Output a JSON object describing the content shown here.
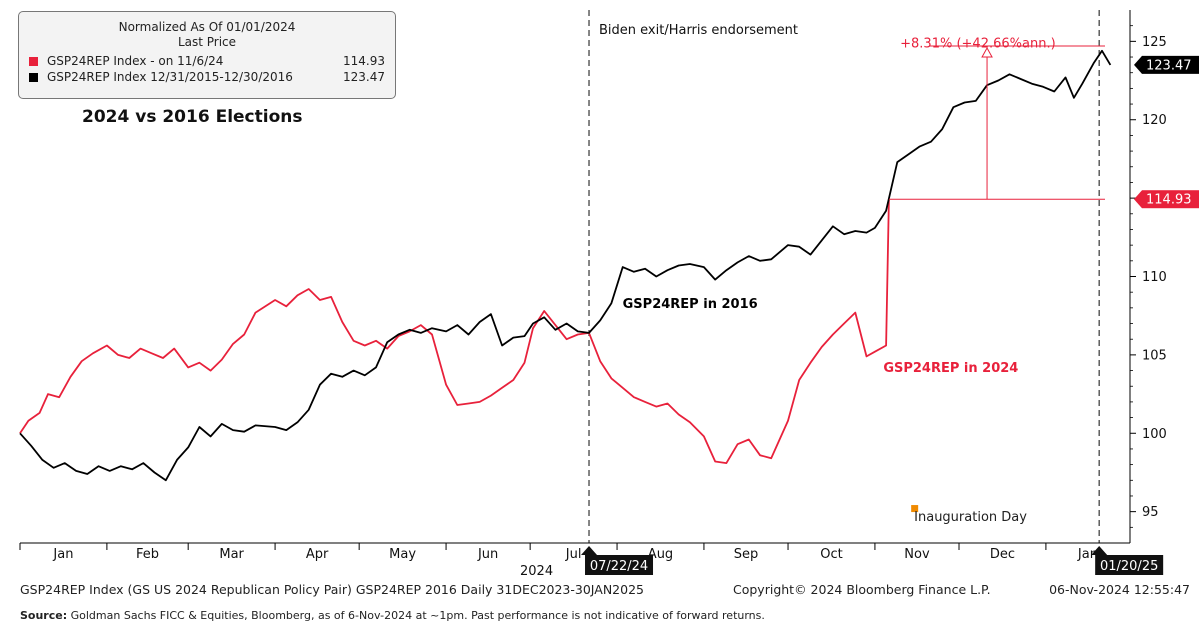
{
  "legend": {
    "header1": "Normalized As Of 01/01/2024",
    "header2": "Last Price",
    "rows": [
      {
        "label": "GSP24REP Index -  on 11/6/24",
        "value": "114.93",
        "color": "#e8213b"
      },
      {
        "label": "GSP24REP Index 12/31/2015-12/30/2016",
        "value": "123.47",
        "color": "#000000"
      }
    ]
  },
  "chart_title": "2024 vs 2016 Elections",
  "chart_data": {
    "type": "line",
    "title": "2024 vs 2016 Elections",
    "ylim": [
      93,
      127
    ],
    "yticks": [
      95,
      100,
      105,
      110,
      115,
      120,
      125
    ],
    "ytick_labels": [
      "95",
      "100",
      "105",
      "110",
      "115",
      "120",
      "125"
    ],
    "xaxis": {
      "domain": [
        "2024-01-01",
        "2025-01-31"
      ],
      "month_ticks": [
        "2024-01-01",
        "2024-02-01",
        "2024-03-01",
        "2024-04-01",
        "2024-05-01",
        "2024-06-01",
        "2024-07-01",
        "2024-08-01",
        "2024-09-01",
        "2024-10-01",
        "2024-11-01",
        "2024-12-01",
        "2025-01-01"
      ],
      "month_labels": [
        "Jan",
        "Feb",
        "Mar",
        "Apr",
        "May",
        "Jun",
        "Jul",
        "Aug",
        "Sep",
        "Oct",
        "Nov",
        "Dec",
        "Jan"
      ],
      "year_label": "2024"
    },
    "series": [
      {
        "name": "GSP24REP in 2024",
        "color": "#e8213b",
        "last_value_label": "114.93",
        "points": [
          [
            "2024-01-01",
            100.0
          ],
          [
            "2024-01-04",
            100.8
          ],
          [
            "2024-01-08",
            101.3
          ],
          [
            "2024-01-11",
            102.5
          ],
          [
            "2024-01-15",
            102.3
          ],
          [
            "2024-01-19",
            103.6
          ],
          [
            "2024-01-23",
            104.6
          ],
          [
            "2024-01-27",
            105.1
          ],
          [
            "2024-02-01",
            105.6
          ],
          [
            "2024-02-05",
            105.0
          ],
          [
            "2024-02-09",
            104.8
          ],
          [
            "2024-02-13",
            105.4
          ],
          [
            "2024-02-17",
            105.1
          ],
          [
            "2024-02-21",
            104.8
          ],
          [
            "2024-02-25",
            105.4
          ],
          [
            "2024-03-01",
            104.2
          ],
          [
            "2024-03-05",
            104.5
          ],
          [
            "2024-03-09",
            104.0
          ],
          [
            "2024-03-13",
            104.7
          ],
          [
            "2024-03-17",
            105.7
          ],
          [
            "2024-03-21",
            106.3
          ],
          [
            "2024-03-25",
            107.7
          ],
          [
            "2024-04-01",
            108.5
          ],
          [
            "2024-04-05",
            108.1
          ],
          [
            "2024-04-09",
            108.8
          ],
          [
            "2024-04-13",
            109.2
          ],
          [
            "2024-04-17",
            108.5
          ],
          [
            "2024-04-21",
            108.7
          ],
          [
            "2024-04-25",
            107.1
          ],
          [
            "2024-04-29",
            105.9
          ],
          [
            "2024-05-03",
            105.6
          ],
          [
            "2024-05-07",
            105.9
          ],
          [
            "2024-05-11",
            105.4
          ],
          [
            "2024-05-15",
            106.2
          ],
          [
            "2024-05-19",
            106.5
          ],
          [
            "2024-05-23",
            106.9
          ],
          [
            "2024-05-27",
            106.3
          ],
          [
            "2024-06-01",
            103.1
          ],
          [
            "2024-06-05",
            101.8
          ],
          [
            "2024-06-09",
            101.9
          ],
          [
            "2024-06-13",
            102.0
          ],
          [
            "2024-06-17",
            102.4
          ],
          [
            "2024-06-21",
            102.9
          ],
          [
            "2024-06-25",
            103.4
          ],
          [
            "2024-06-29",
            104.5
          ],
          [
            "2024-07-02",
            106.7
          ],
          [
            "2024-07-06",
            107.8
          ],
          [
            "2024-07-10",
            106.9
          ],
          [
            "2024-07-14",
            106.0
          ],
          [
            "2024-07-18",
            106.3
          ],
          [
            "2024-07-22",
            106.4
          ],
          [
            "2024-07-26",
            104.6
          ],
          [
            "2024-07-30",
            103.5
          ],
          [
            "2024-08-03",
            102.9
          ],
          [
            "2024-08-07",
            102.3
          ],
          [
            "2024-08-11",
            102.0
          ],
          [
            "2024-08-15",
            101.7
          ],
          [
            "2024-08-19",
            101.9
          ],
          [
            "2024-08-23",
            101.2
          ],
          [
            "2024-08-27",
            100.7
          ],
          [
            "2024-09-01",
            99.8
          ],
          [
            "2024-09-05",
            98.2
          ],
          [
            "2024-09-09",
            98.1
          ],
          [
            "2024-09-13",
            99.3
          ],
          [
            "2024-09-17",
            99.6
          ],
          [
            "2024-09-21",
            98.6
          ],
          [
            "2024-09-25",
            98.4
          ],
          [
            "2024-10-01",
            100.8
          ],
          [
            "2024-10-05",
            103.4
          ],
          [
            "2024-10-09",
            104.5
          ],
          [
            "2024-10-13",
            105.5
          ],
          [
            "2024-10-17",
            106.3
          ],
          [
            "2024-10-21",
            107.0
          ],
          [
            "2024-10-25",
            107.7
          ],
          [
            "2024-10-29",
            104.9
          ],
          [
            "2024-11-01",
            105.2
          ],
          [
            "2024-11-05",
            105.6
          ],
          [
            "2024-11-06",
            114.93
          ]
        ]
      },
      {
        "name": "GSP24REP in 2016",
        "color": "#000000",
        "last_value_label": "123.47",
        "points": [
          [
            "2024-01-01",
            100.0
          ],
          [
            "2024-01-05",
            99.2
          ],
          [
            "2024-01-09",
            98.3
          ],
          [
            "2024-01-13",
            97.8
          ],
          [
            "2024-01-17",
            98.1
          ],
          [
            "2024-01-21",
            97.6
          ],
          [
            "2024-01-25",
            97.4
          ],
          [
            "2024-01-29",
            97.9
          ],
          [
            "2024-02-02",
            97.6
          ],
          [
            "2024-02-06",
            97.9
          ],
          [
            "2024-02-10",
            97.7
          ],
          [
            "2024-02-14",
            98.1
          ],
          [
            "2024-02-18",
            97.5
          ],
          [
            "2024-02-22",
            97.0
          ],
          [
            "2024-02-26",
            98.3
          ],
          [
            "2024-03-01",
            99.1
          ],
          [
            "2024-03-05",
            100.4
          ],
          [
            "2024-03-09",
            99.8
          ],
          [
            "2024-03-13",
            100.6
          ],
          [
            "2024-03-17",
            100.2
          ],
          [
            "2024-03-21",
            100.1
          ],
          [
            "2024-03-25",
            100.5
          ],
          [
            "2024-04-01",
            100.4
          ],
          [
            "2024-04-05",
            100.2
          ],
          [
            "2024-04-09",
            100.7
          ],
          [
            "2024-04-13",
            101.5
          ],
          [
            "2024-04-17",
            103.1
          ],
          [
            "2024-04-21",
            103.8
          ],
          [
            "2024-04-25",
            103.6
          ],
          [
            "2024-04-29",
            104.0
          ],
          [
            "2024-05-03",
            103.7
          ],
          [
            "2024-05-07",
            104.2
          ],
          [
            "2024-05-11",
            105.8
          ],
          [
            "2024-05-15",
            106.3
          ],
          [
            "2024-05-19",
            106.6
          ],
          [
            "2024-05-23",
            106.4
          ],
          [
            "2024-05-27",
            106.7
          ],
          [
            "2024-06-01",
            106.5
          ],
          [
            "2024-06-05",
            106.9
          ],
          [
            "2024-06-09",
            106.3
          ],
          [
            "2024-06-13",
            107.1
          ],
          [
            "2024-06-17",
            107.6
          ],
          [
            "2024-06-21",
            105.6
          ],
          [
            "2024-06-25",
            106.1
          ],
          [
            "2024-06-29",
            106.2
          ],
          [
            "2024-07-02",
            107.0
          ],
          [
            "2024-07-06",
            107.4
          ],
          [
            "2024-07-10",
            106.6
          ],
          [
            "2024-07-14",
            107.0
          ],
          [
            "2024-07-18",
            106.5
          ],
          [
            "2024-07-22",
            106.4
          ],
          [
            "2024-07-26",
            107.2
          ],
          [
            "2024-07-30",
            108.3
          ],
          [
            "2024-08-03",
            110.6
          ],
          [
            "2024-08-07",
            110.3
          ],
          [
            "2024-08-11",
            110.5
          ],
          [
            "2024-08-15",
            110.0
          ],
          [
            "2024-08-19",
            110.4
          ],
          [
            "2024-08-23",
            110.7
          ],
          [
            "2024-08-27",
            110.8
          ],
          [
            "2024-09-01",
            110.6
          ],
          [
            "2024-09-05",
            109.8
          ],
          [
            "2024-09-09",
            110.4
          ],
          [
            "2024-09-13",
            110.9
          ],
          [
            "2024-09-17",
            111.3
          ],
          [
            "2024-09-21",
            111.0
          ],
          [
            "2024-09-25",
            111.1
          ],
          [
            "2024-10-01",
            112.0
          ],
          [
            "2024-10-05",
            111.9
          ],
          [
            "2024-10-09",
            111.4
          ],
          [
            "2024-10-13",
            112.3
          ],
          [
            "2024-10-17",
            113.2
          ],
          [
            "2024-10-21",
            112.7
          ],
          [
            "2024-10-25",
            112.9
          ],
          [
            "2024-10-29",
            112.8
          ],
          [
            "2024-11-01",
            113.1
          ],
          [
            "2024-11-05",
            114.2
          ],
          [
            "2024-11-09",
            117.3
          ],
          [
            "2024-11-13",
            117.8
          ],
          [
            "2024-11-17",
            118.3
          ],
          [
            "2024-11-21",
            118.6
          ],
          [
            "2024-11-25",
            119.4
          ],
          [
            "2024-11-29",
            120.8
          ],
          [
            "2024-12-03",
            121.1
          ],
          [
            "2024-12-07",
            121.2
          ],
          [
            "2024-12-11",
            122.2
          ],
          [
            "2024-12-15",
            122.5
          ],
          [
            "2024-12-19",
            122.9
          ],
          [
            "2024-12-23",
            122.6
          ],
          [
            "2024-12-27",
            122.3
          ],
          [
            "2024-12-31",
            122.1
          ],
          [
            "2025-01-04",
            121.8
          ],
          [
            "2025-01-08",
            122.7
          ],
          [
            "2025-01-11",
            121.4
          ],
          [
            "2025-01-14",
            122.3
          ],
          [
            "2025-01-18",
            123.6
          ],
          [
            "2025-01-21",
            124.4
          ],
          [
            "2025-01-24",
            123.5
          ]
        ]
      }
    ],
    "vlines": [
      {
        "date": "2024-07-22",
        "label": "Biden exit/Harris endorsement",
        "date_label": "07/22/24"
      },
      {
        "date": "2025-01-20",
        "label": "",
        "date_label": "01/20/25"
      }
    ],
    "annotations": [
      {
        "text": "GSP24REP in 2016",
        "date": "2024-08-03",
        "y": 108.0,
        "color": "#000000"
      },
      {
        "text": "GSP24REP in 2024",
        "date": "2024-11-04",
        "y": 103.9,
        "color": "#e8213b"
      },
      {
        "text": "+8.31% (+42.66%ann.)",
        "date": "2024-11-10",
        "y": 124.6,
        "color": "#e8213b"
      },
      {
        "text": "Inauguration Day",
        "date": "2024-11-15",
        "y": 94.4,
        "color": "#222222",
        "marker_color": "#f08a00"
      }
    ],
    "change_bracket": {
      "from_date": "2024-11-06",
      "to_date": "2025-01-24",
      "arrow_date": "2024-12-11",
      "low": 114.93,
      "high": 124.7,
      "color": "#e8213b"
    }
  },
  "footer": {
    "left": "GSP24REP Index (GS US 2024 Republican Policy Pair) GSP24REP 2016  Daily 31DEC2023-30JAN2025",
    "copyright": "Copyright© 2024 Bloomberg Finance L.P.",
    "timestamp": "06-Nov-2024 12:55:47"
  },
  "source": {
    "label": "Source:",
    "text": " Goldman Sachs FICC & Equities, Bloomberg, as of 6-Nov-2024 at ~1pm. Past performance is not indicative of forward returns."
  }
}
